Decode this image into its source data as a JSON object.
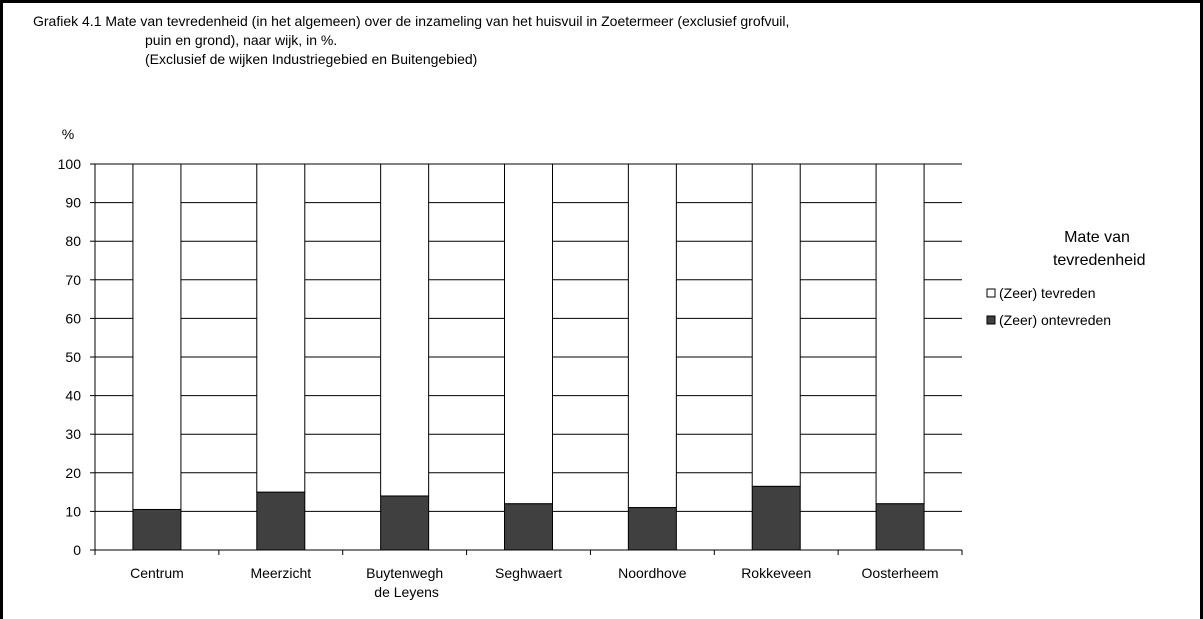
{
  "chart_data": {
    "type": "stacked_bar",
    "title": [
      "Grafiek 4.1  Mate van tevredenheid (in het algemeen) over de inzameling van het huisvuil in Zoetermeer (exclusief grofvuil,",
      "puin en grond), naar wijk, in %."
    ],
    "subtitle": "(Exclusief de wijken Industriegebied en Buitengebied)",
    "y_label": "%",
    "categories": [
      "Centrum",
      "Meerzicht",
      "Buytenwegh de Leyens",
      "Seghwaert",
      "Noordhove",
      "Rokkeveen",
      "Oosterheem"
    ],
    "series": [
      {
        "name": "(Zeer) tevreden",
        "color": "#ffffff",
        "values": [
          89.5,
          85,
          86,
          88,
          89,
          83.5,
          88
        ]
      },
      {
        "name": "(Zeer) ontevreden",
        "color": "#404040",
        "values": [
          10.5,
          15,
          14,
          12,
          11,
          16.5,
          12
        ]
      }
    ],
    "legend_title": "Mate van tevredenheid",
    "ylim": [
      0,
      100
    ],
    "yticks": [
      0,
      10,
      20,
      30,
      40,
      50,
      60,
      70,
      80,
      90,
      100
    ],
    "grid": true
  }
}
